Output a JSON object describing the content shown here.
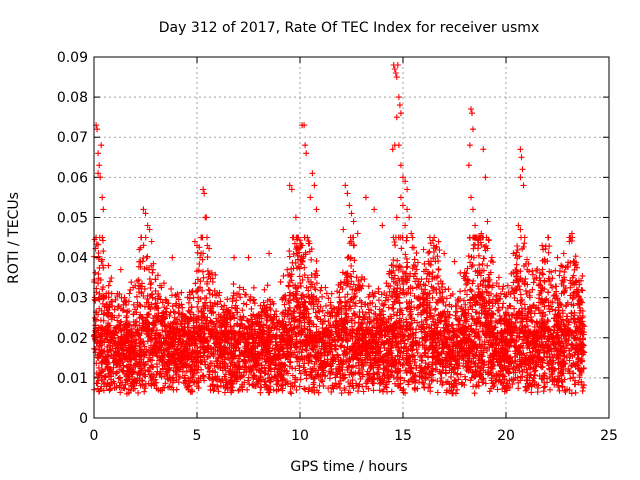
{
  "chart_data": {
    "type": "scatter",
    "title": "Day 312 of 2017, Rate Of TEC Index for receiver usmx",
    "xlabel": "GPS time / hours",
    "ylabel": "ROTI / TECUs",
    "xlim": [
      0,
      25
    ],
    "ylim": [
      0,
      0.09
    ],
    "xticks": [
      "0",
      "5",
      "10",
      "15",
      "20",
      "25"
    ],
    "yticks": [
      "0",
      "0.01",
      "0.02",
      "0.03",
      "0.04",
      "0.05",
      "0.06",
      "0.07",
      "0.08",
      "0.09"
    ],
    "grid": true,
    "marker": "plus",
    "series": [
      {
        "name": "ROTI",
        "color": "#ff0000",
        "description_of_bulk": "dense band of points between about 0.004 and 0.035 TECU/s across 0-24 h",
        "points": [
          [
            0.1,
            0.073
          ],
          [
            0.15,
            0.072
          ],
          [
            0.2,
            0.066
          ],
          [
            0.25,
            0.063
          ],
          [
            0.2,
            0.061
          ],
          [
            0.3,
            0.06
          ],
          [
            0.35,
            0.068
          ],
          [
            0.1,
            0.045
          ],
          [
            0.4,
            0.055
          ],
          [
            0.45,
            0.052
          ],
          [
            2.4,
            0.052
          ],
          [
            2.5,
            0.051
          ],
          [
            2.6,
            0.048
          ],
          [
            2.7,
            0.047
          ],
          [
            2.3,
            0.045
          ],
          [
            2.8,
            0.044
          ],
          [
            2.2,
            0.042
          ],
          [
            4.9,
            0.044
          ],
          [
            5.0,
            0.043
          ],
          [
            5.3,
            0.057
          ],
          [
            5.35,
            0.056
          ],
          [
            5.4,
            0.05
          ],
          [
            5.45,
            0.05
          ],
          [
            5.5,
            0.043
          ],
          [
            5.2,
            0.041
          ],
          [
            9.5,
            0.058
          ],
          [
            9.6,
            0.057
          ],
          [
            9.8,
            0.05
          ],
          [
            9.9,
            0.045
          ],
          [
            10.1,
            0.073
          ],
          [
            10.2,
            0.073
          ],
          [
            10.25,
            0.068
          ],
          [
            10.3,
            0.066
          ],
          [
            10.6,
            0.061
          ],
          [
            10.7,
            0.058
          ],
          [
            10.5,
            0.055
          ],
          [
            10.8,
            0.052
          ],
          [
            12.2,
            0.058
          ],
          [
            12.3,
            0.056
          ],
          [
            12.4,
            0.053
          ],
          [
            12.5,
            0.051
          ],
          [
            12.6,
            0.049
          ],
          [
            12.8,
            0.046
          ],
          [
            12.1,
            0.047
          ],
          [
            13.2,
            0.055
          ],
          [
            13.6,
            0.052
          ],
          [
            14.0,
            0.048
          ],
          [
            14.55,
            0.088
          ],
          [
            14.6,
            0.087
          ],
          [
            14.65,
            0.086
          ],
          [
            14.7,
            0.085
          ],
          [
            14.75,
            0.088
          ],
          [
            14.8,
            0.08
          ],
          [
            14.85,
            0.078
          ],
          [
            14.9,
            0.076
          ],
          [
            14.7,
            0.075
          ],
          [
            14.6,
            0.068
          ],
          [
            14.5,
            0.067
          ],
          [
            14.8,
            0.068
          ],
          [
            14.9,
            0.063
          ],
          [
            15.0,
            0.06
          ],
          [
            15.1,
            0.059
          ],
          [
            15.2,
            0.057
          ],
          [
            14.9,
            0.055
          ],
          [
            15.0,
            0.053
          ],
          [
            15.2,
            0.052
          ],
          [
            15.3,
            0.05
          ],
          [
            15.1,
            0.048
          ],
          [
            14.7,
            0.05
          ],
          [
            15.4,
            0.046
          ],
          [
            18.3,
            0.077
          ],
          [
            18.35,
            0.076
          ],
          [
            18.4,
            0.072
          ],
          [
            18.25,
            0.068
          ],
          [
            18.2,
            0.063
          ],
          [
            18.3,
            0.055
          ],
          [
            18.4,
            0.052
          ],
          [
            18.5,
            0.048
          ],
          [
            18.9,
            0.067
          ],
          [
            19.0,
            0.06
          ],
          [
            19.1,
            0.049
          ],
          [
            18.8,
            0.046
          ],
          [
            20.7,
            0.067
          ],
          [
            20.75,
            0.065
          ],
          [
            20.8,
            0.062
          ],
          [
            20.7,
            0.06
          ],
          [
            20.85,
            0.058
          ],
          [
            20.6,
            0.048
          ],
          [
            20.7,
            0.047
          ],
          [
            23.2,
            0.046
          ],
          [
            22.8,
            0.041
          ],
          [
            22.5,
            0.04
          ],
          [
            21.8,
            0.042
          ],
          [
            16.5,
            0.043
          ],
          [
            17.0,
            0.041
          ],
          [
            17.5,
            0.039
          ],
          [
            16.0,
            0.042
          ],
          [
            7.5,
            0.04
          ],
          [
            8.5,
            0.041
          ],
          [
            6.8,
            0.04
          ],
          [
            3.8,
            0.04
          ],
          [
            1.3,
            0.037
          ],
          [
            0.7,
            0.038
          ]
        ]
      }
    ]
  }
}
